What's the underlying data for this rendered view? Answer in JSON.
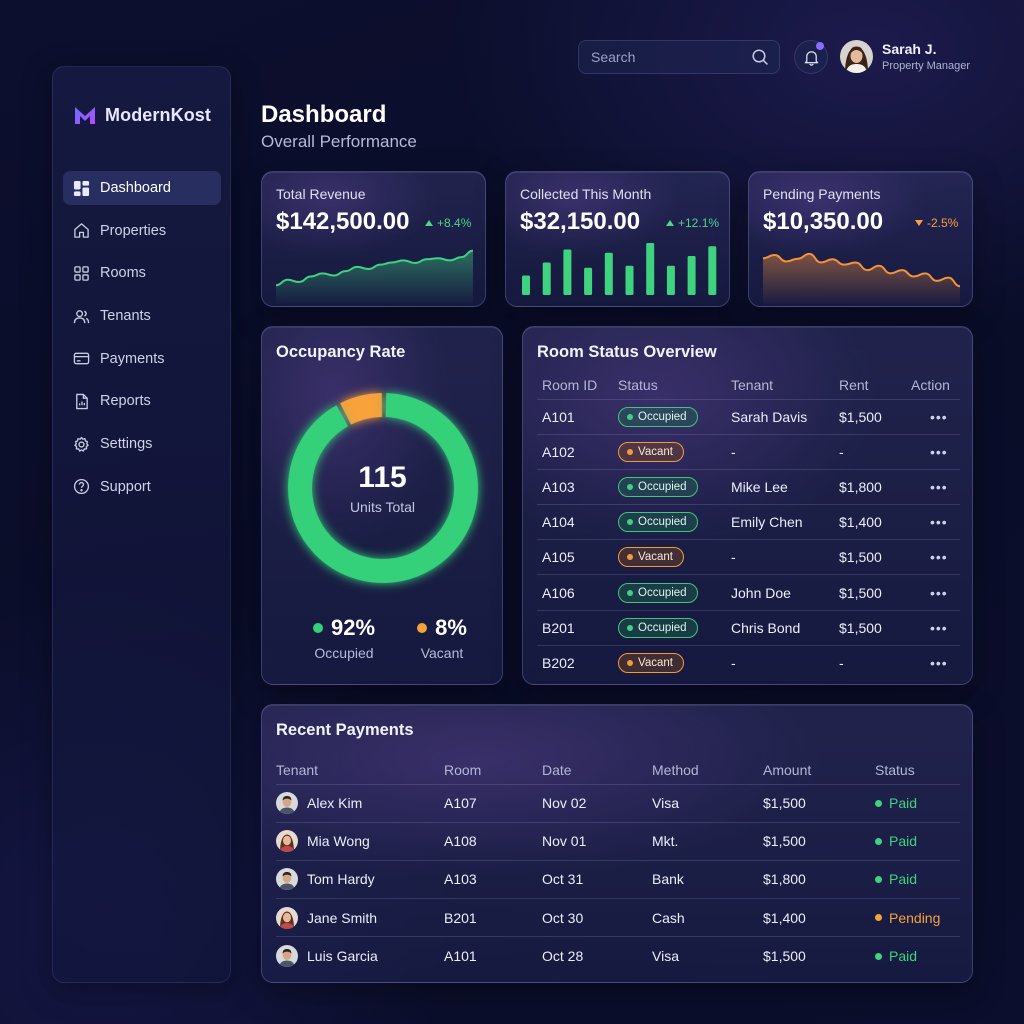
{
  "app": {
    "name": "ModernKost"
  },
  "sidebar": {
    "items": [
      {
        "label": "Dashboard",
        "icon": "grid-icon",
        "active": true
      },
      {
        "label": "Properties",
        "icon": "home-icon"
      },
      {
        "label": "Rooms",
        "icon": "rooms-grid-icon"
      },
      {
        "label": "Tenants",
        "icon": "users-icon"
      },
      {
        "label": "Payments",
        "icon": "card-icon"
      },
      {
        "label": "Reports",
        "icon": "report-icon"
      },
      {
        "label": "Settings",
        "icon": "gear-icon"
      },
      {
        "label": "Support",
        "icon": "help-icon"
      }
    ]
  },
  "topbar": {
    "search_placeholder": "Search",
    "user": {
      "name": "Sarah J.",
      "role": "Property Manager"
    }
  },
  "header": {
    "title": "Dashboard",
    "subtitle": "Overall Performance"
  },
  "kpis": [
    {
      "label": "Total Revenue",
      "value": "$142,500.00",
      "delta": "+8.4%",
      "trend": "up",
      "color": "#3fd27f"
    },
    {
      "label": "Collected This Month",
      "value": "$32,150.00",
      "delta": "+12.1%",
      "trend": "up",
      "color": "#3fd27f"
    },
    {
      "label": "Pending Payments",
      "value": "$10,350.00",
      "delta": "-2.5%",
      "trend": "down",
      "color": "#f5923a"
    }
  ],
  "occupancy": {
    "title": "Occupancy Rate",
    "total": "115",
    "total_label": "Units Total",
    "occupied_pct": 92,
    "vacant_pct": 8,
    "occupied_text": "92%",
    "occupied_label": "Occupied",
    "vacant_text": "8%",
    "vacant_label": "Vacant",
    "colors": {
      "occupied": "#35d07a",
      "vacant": "#f7a23a"
    }
  },
  "room_status": {
    "title": "Room Status Overview",
    "columns": [
      "Room ID",
      "Status",
      "Tenant",
      "Rent",
      "Action"
    ],
    "rows": [
      {
        "room": "A101",
        "status": "Occupied",
        "tenant": "Sarah Davis",
        "rent": "$1,500"
      },
      {
        "room": "A102",
        "status": "Vacant",
        "tenant": "-",
        "rent": "-"
      },
      {
        "room": "A103",
        "status": "Occupied",
        "tenant": "Mike Lee",
        "rent": "$1,800"
      },
      {
        "room": "A104",
        "status": "Occupied",
        "tenant": "Emily Chen",
        "rent": "$1,400"
      },
      {
        "room": "A105",
        "status": "Vacant",
        "tenant": "-",
        "rent": "$1,500"
      },
      {
        "room": "A106",
        "status": "Occupied",
        "tenant": "John Doe",
        "rent": "$1,500"
      },
      {
        "room": "B201",
        "status": "Occupied",
        "tenant": "Chris Bond",
        "rent": "$1,500"
      },
      {
        "room": "B202",
        "status": "Vacant",
        "tenant": "-",
        "rent": "-"
      }
    ],
    "action_label": "•••"
  },
  "recent_payments": {
    "title": "Recent Payments",
    "columns": [
      "Tenant",
      "Room",
      "Date",
      "Method",
      "Amount",
      "Status"
    ],
    "rows": [
      {
        "tenant": "Alex Kim",
        "room": "A107",
        "date": "Nov 02",
        "method": "Visa",
        "amount": "$1,500",
        "status": "Paid",
        "avatar": "male-avatar"
      },
      {
        "tenant": "Mia Wong",
        "room": "A108",
        "date": "Nov 01",
        "method": "Mkt.",
        "amount": "$1,500",
        "status": "Paid",
        "avatar": "female-avatar"
      },
      {
        "tenant": "Tom Hardy",
        "room": "A103",
        "date": "Oct 31",
        "method": "Bank",
        "amount": "$1,800",
        "status": "Paid",
        "avatar": "male-avatar"
      },
      {
        "tenant": "Jane Smith",
        "room": "B201",
        "date": "Oct 30",
        "method": "Cash",
        "amount": "$1,400",
        "status": "Pending",
        "avatar": "female-avatar"
      },
      {
        "tenant": "Luis Garcia",
        "room": "A101",
        "date": "Oct 28",
        "method": "Visa",
        "amount": "$1,500",
        "status": "Paid",
        "avatar": "male-avatar"
      }
    ],
    "status_colors": {
      "Paid": "#3fd27f",
      "Pending": "#f5a23a"
    }
  },
  "chart_data": [
    {
      "type": "area",
      "series": [
        {
          "values": [
            2,
            3,
            2.6,
            3.6,
            4.2,
            3.8,
            4.6,
            5.4,
            5.0,
            5.8,
            6.2,
            6.6,
            6.1,
            6.8,
            7.0,
            6.6,
            7.2,
            8.4
          ]
        }
      ]
    },
    {
      "type": "bar",
      "series": [
        {
          "values": [
            3,
            5,
            7,
            4.2,
            6.5,
            4.5,
            8,
            4.5,
            6,
            7.5
          ]
        }
      ]
    },
    {
      "type": "area",
      "series": [
        {
          "values": [
            7,
            7.6,
            6.4,
            6.9,
            7.8,
            6.2,
            6.8,
            5.8,
            6.2,
            4.8,
            5.6,
            4.2,
            4.8,
            3.6,
            4.2,
            2.8,
            3.4,
            1.8
          ]
        }
      ]
    }
  ]
}
